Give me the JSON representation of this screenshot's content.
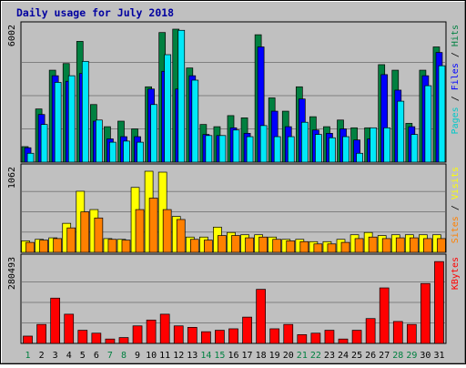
{
  "chart_data": {
    "type": "bar",
    "title": "Daily usage for July 2018",
    "categories": [
      "1",
      "2",
      "3",
      "4",
      "5",
      "6",
      "7",
      "8",
      "9",
      "10",
      "11",
      "12",
      "13",
      "14",
      "15",
      "16",
      "17",
      "18",
      "19",
      "20",
      "21",
      "22",
      "23",
      "24",
      "25",
      "26",
      "27",
      "28",
      "29",
      "30",
      "31"
    ],
    "weekend_days": [
      "1",
      "7",
      "8",
      "14",
      "15",
      "21",
      "22",
      "28",
      "29"
    ],
    "panels": [
      {
        "id": "hits",
        "max_label": "6002",
        "ylim": [
          0,
          6002
        ],
        "axis_labels": [
          {
            "text": "Pages",
            "color": "#00c8c8"
          },
          {
            "text": " / ",
            "color": "#000000"
          },
          {
            "text": "Files",
            "color": "#0000ff"
          },
          {
            "text": " / ",
            "color": "#000000"
          },
          {
            "text": "Hits",
            "color": "#008040"
          }
        ],
        "series": [
          {
            "name": "Hits",
            "color": "#008040",
            "values": [
              700,
              2400,
              4150,
              4450,
              5450,
              2600,
              1600,
              1850,
              1500,
              3400,
              5850,
              6002,
              4250,
              1700,
              1600,
              2100,
              2000,
              5750,
              2900,
              2300,
              3400,
              2050,
              1600,
              1900,
              1550,
              1550,
              4400,
              4150,
              1750,
              4150,
              5200
            ]
          },
          {
            "name": "Files",
            "color": "#0000ff",
            "values": [
              650,
              2150,
              3900,
              3650,
              4000,
              1850,
              1050,
              1150,
              1150,
              3300,
              4100,
              3300,
              3900,
              1250,
              1200,
              1550,
              1300,
              5200,
              2300,
              1600,
              2850,
              1450,
              1300,
              1500,
              1000,
              1050,
              3950,
              3250,
              1600,
              3900,
              4950
            ]
          },
          {
            "name": "Pages",
            "color": "#00e8f8",
            "values": [
              400,
              1700,
              3600,
              3900,
              4550,
              1900,
              900,
              950,
              900,
              2600,
              4850,
              5950,
              3700,
              1200,
              1200,
              1450,
              1150,
              1650,
              1150,
              1150,
              1800,
              1250,
              1100,
              1150,
              400,
              1550,
              1550,
              2750,
              1250,
              3450,
              4350
            ]
          }
        ]
      },
      {
        "id": "visits",
        "max_label": "1062",
        "ylim": [
          0,
          1062
        ],
        "axis_labels": [
          {
            "text": "Sites",
            "color": "#ff8000"
          },
          {
            "text": " / ",
            "color": "#000000"
          },
          {
            "text": "Visits",
            "color": "#ffff00"
          }
        ],
        "series": [
          {
            "name": "Visits",
            "color": "#ffff00",
            "values": [
              150,
              170,
              190,
              380,
              800,
              560,
              180,
              170,
              850,
              1062,
              1050,
              470,
              200,
              200,
              330,
              260,
              230,
              230,
              200,
              170,
              170,
              140,
              140,
              170,
              230,
              260,
              220,
              230,
              230,
              230,
              230
            ]
          },
          {
            "name": "Sites",
            "color": "#ff8000",
            "values": [
              130,
              160,
              180,
              320,
              530,
              450,
              170,
              160,
              560,
              710,
              560,
              430,
              170,
              160,
              220,
              220,
              190,
              200,
              170,
              150,
              140,
              110,
              110,
              130,
              180,
              200,
              180,
              190,
              190,
              180,
              180
            ]
          }
        ]
      },
      {
        "id": "kbytes",
        "max_label": "280493",
        "ylim": [
          0,
          280493
        ],
        "axis_labels": [
          {
            "text": "KBytes",
            "color": "#ff0000"
          }
        ],
        "series": [
          {
            "name": "KBytes",
            "color": "#ff0000",
            "values": [
              25000,
              65000,
              155000,
              100000,
              45000,
              35000,
              15000,
              20000,
              60000,
              80000,
              100000,
              60000,
              55000,
              40000,
              45000,
              50000,
              90000,
              185000,
              50000,
              65000,
              30000,
              35000,
              45000,
              15000,
              45000,
              85000,
              190000,
              75000,
              65000,
              205000,
              280000
            ]
          }
        ]
      }
    ]
  }
}
